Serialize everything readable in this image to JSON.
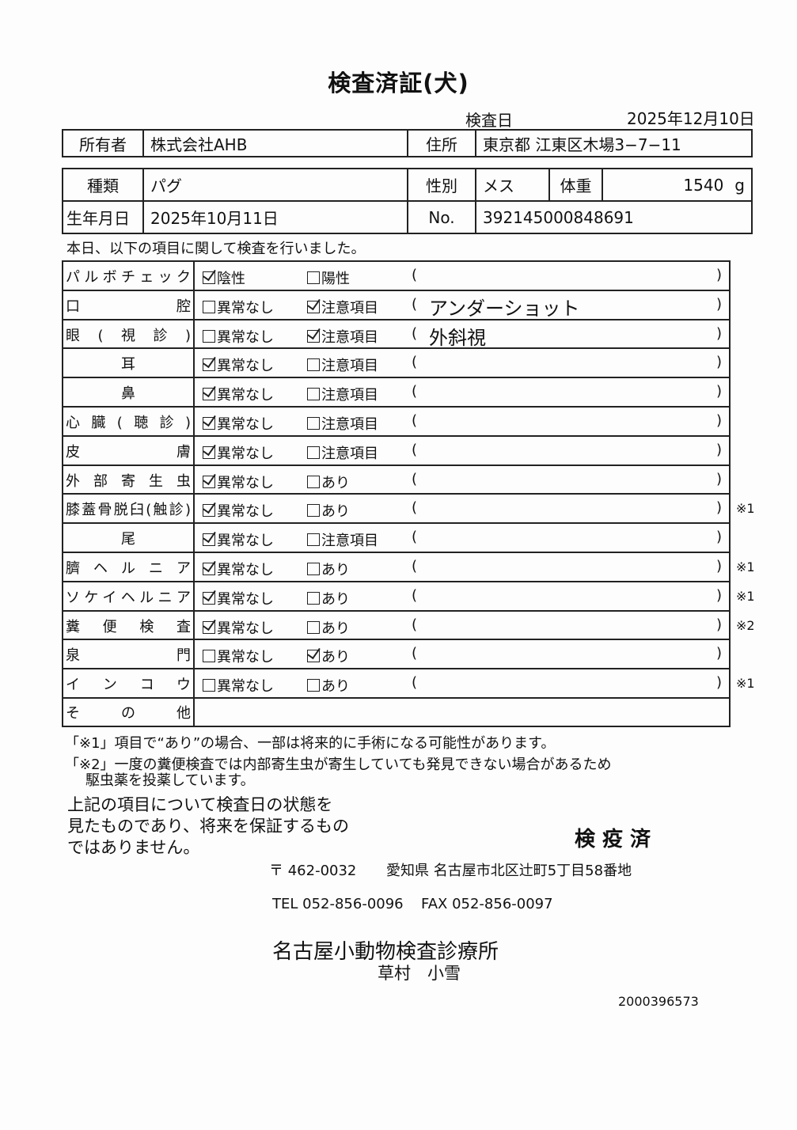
{
  "title": "検査済証(犬)",
  "exam_date_label": "検査日",
  "exam_date": "2025年12月10日",
  "owner": {
    "label": "所有者",
    "value": "株式会社AHB",
    "address_label": "住所",
    "address": "東京都 江東区木場3−7−11"
  },
  "pet": {
    "breed_label": "種類",
    "breed": "パグ",
    "sex_label": "性別",
    "sex": "メス",
    "weight_label": "体重",
    "weight": "1540",
    "weight_unit": "g",
    "birth_label": "生年月日",
    "birth": "2025年10月11日",
    "no_label": "No.",
    "no": "392145000848691"
  },
  "intro": "本日、以下の項目に関して検査を行いました。",
  "paren_open": "(",
  "paren_close": ")",
  "rows": [
    {
      "label": "パルボチェック",
      "opt1": "陰性",
      "opt1_checked": true,
      "opt2": "陽性",
      "opt2_checked": false,
      "remark": "",
      "note": ""
    },
    {
      "label": "口腔",
      "opt1": "異常なし",
      "opt1_checked": false,
      "opt2": "注意項目",
      "opt2_checked": true,
      "remark": "アンダーショット",
      "note": ""
    },
    {
      "label": "眼(視診)",
      "opt1": "異常なし",
      "opt1_checked": false,
      "opt2": "注意項目",
      "opt2_checked": true,
      "remark": "外斜視",
      "note": ""
    },
    {
      "label": "耳",
      "opt1": "異常なし",
      "opt1_checked": true,
      "opt2": "注意項目",
      "opt2_checked": false,
      "remark": "",
      "note": ""
    },
    {
      "label": "鼻",
      "opt1": "異常なし",
      "opt1_checked": true,
      "opt2": "注意項目",
      "opt2_checked": false,
      "remark": "",
      "note": ""
    },
    {
      "label": "心臓(聴診)",
      "opt1": "異常なし",
      "opt1_checked": true,
      "opt2": "注意項目",
      "opt2_checked": false,
      "remark": "",
      "note": ""
    },
    {
      "label": "皮膚",
      "opt1": "異常なし",
      "opt1_checked": true,
      "opt2": "注意項目",
      "opt2_checked": false,
      "remark": "",
      "note": ""
    },
    {
      "label": "外部寄生虫",
      "opt1": "異常なし",
      "opt1_checked": true,
      "opt2": "あり",
      "opt2_checked": false,
      "remark": "",
      "note": ""
    },
    {
      "label": "膝蓋骨脱臼(触診)",
      "opt1": "異常なし",
      "opt1_checked": true,
      "opt2": "あり",
      "opt2_checked": false,
      "remark": "",
      "note": "※1"
    },
    {
      "label": "尾",
      "opt1": "異常なし",
      "opt1_checked": true,
      "opt2": "注意項目",
      "opt2_checked": false,
      "remark": "",
      "note": ""
    },
    {
      "label": "臍ヘルニア",
      "opt1": "異常なし",
      "opt1_checked": true,
      "opt2": "あり",
      "opt2_checked": false,
      "remark": "",
      "note": "※1"
    },
    {
      "label": "ソケイヘルニア",
      "opt1": "異常なし",
      "opt1_checked": true,
      "opt2": "あり",
      "opt2_checked": false,
      "remark": "",
      "note": "※1"
    },
    {
      "label": "糞便検査",
      "opt1": "異常なし",
      "opt1_checked": true,
      "opt2": "あり",
      "opt2_checked": false,
      "remark": "",
      "note": "※2"
    },
    {
      "label": "泉門",
      "opt1": "異常なし",
      "opt1_checked": false,
      "opt2": "あり",
      "opt2_checked": true,
      "remark": "",
      "note": ""
    },
    {
      "label": "インコウ",
      "opt1": "異常なし",
      "opt1_checked": false,
      "opt2": "あり",
      "opt2_checked": false,
      "remark": "",
      "note": "※1"
    }
  ],
  "other_label": "その他",
  "footnote1": "「※1」項目で“あり”の場合、一部は将来的に手術になる可能性があります。",
  "footnote2a": "「※2」一度の糞便検査では内部寄生虫が寄生していても発見できない場合があるため",
  "footnote2b": "駆虫薬を投薬しています。",
  "disclaimer": [
    "上記の項目について検査日の状態を",
    "見たものであり、将来を保証するもの",
    "ではありません。"
  ],
  "stamp": "検 疫 済",
  "clinic": {
    "postal": "〒 462-0032",
    "address": "愛知県 名古屋市北区辻町5丁目58番地",
    "tel": "TEL 052-856-0096",
    "fax": "FAX 052-856-0097",
    "name": "名古屋小動物検査診療所",
    "person": "草村　小雪"
  },
  "serial": "2000396573"
}
